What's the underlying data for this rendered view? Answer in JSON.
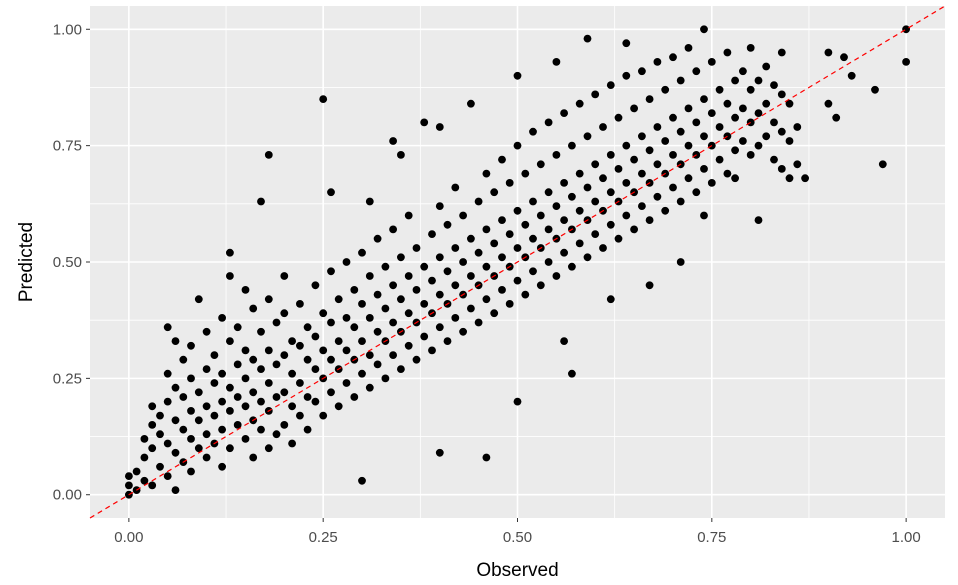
{
  "chart_data": {
    "type": "scatter",
    "title": "",
    "xlabel": "Observed",
    "ylabel": "Predicted",
    "xlim": [
      -0.05,
      1.05
    ],
    "ylim": [
      -0.05,
      1.05
    ],
    "x_ticks": [
      0.0,
      0.25,
      0.5,
      0.75,
      1.0
    ],
    "y_ticks": [
      0.0,
      0.25,
      0.5,
      0.75,
      1.0
    ],
    "x_tick_labels": [
      "0.00",
      "0.25",
      "0.50",
      "0.75",
      "1.00"
    ],
    "y_tick_labels": [
      "0.00",
      "0.25",
      "0.50",
      "0.75",
      "1.00"
    ],
    "grid": true,
    "panel_background": "#ebebeb",
    "grid_color": "#ffffff",
    "point_color": "#000000",
    "reference_line": {
      "slope": 1,
      "intercept": 0,
      "color": "#ff0000",
      "style": "dashed"
    },
    "points_note": "approximately 2500 points clustered along the diagonal; representative sample listed",
    "points": [
      [
        0.0,
        0.0
      ],
      [
        0.0,
        0.02
      ],
      [
        0.0,
        0.04
      ],
      [
        0.01,
        0.01
      ],
      [
        0.01,
        0.05
      ],
      [
        0.02,
        0.03
      ],
      [
        0.02,
        0.08
      ],
      [
        0.02,
        0.12
      ],
      [
        0.03,
        0.02
      ],
      [
        0.03,
        0.1
      ],
      [
        0.03,
        0.15
      ],
      [
        0.03,
        0.19
      ],
      [
        0.04,
        0.06
      ],
      [
        0.04,
        0.13
      ],
      [
        0.04,
        0.17
      ],
      [
        0.05,
        0.04
      ],
      [
        0.05,
        0.11
      ],
      [
        0.05,
        0.2
      ],
      [
        0.05,
        0.26
      ],
      [
        0.05,
        0.36
      ],
      [
        0.06,
        0.01
      ],
      [
        0.06,
        0.09
      ],
      [
        0.06,
        0.16
      ],
      [
        0.06,
        0.23
      ],
      [
        0.06,
        0.33
      ],
      [
        0.07,
        0.07
      ],
      [
        0.07,
        0.14
      ],
      [
        0.07,
        0.21
      ],
      [
        0.07,
        0.29
      ],
      [
        0.08,
        0.05
      ],
      [
        0.08,
        0.12
      ],
      [
        0.08,
        0.18
      ],
      [
        0.08,
        0.25
      ],
      [
        0.08,
        0.32
      ],
      [
        0.09,
        0.1
      ],
      [
        0.09,
        0.16
      ],
      [
        0.09,
        0.22
      ],
      [
        0.09,
        0.42
      ],
      [
        0.1,
        0.08
      ],
      [
        0.1,
        0.13
      ],
      [
        0.1,
        0.19
      ],
      [
        0.1,
        0.27
      ],
      [
        0.1,
        0.35
      ],
      [
        0.11,
        0.11
      ],
      [
        0.11,
        0.17
      ],
      [
        0.11,
        0.24
      ],
      [
        0.11,
        0.3
      ],
      [
        0.12,
        0.06
      ],
      [
        0.12,
        0.14
      ],
      [
        0.12,
        0.2
      ],
      [
        0.12,
        0.26
      ],
      [
        0.12,
        0.38
      ],
      [
        0.13,
        0.52
      ],
      [
        0.13,
        0.47
      ],
      [
        0.13,
        0.1
      ],
      [
        0.13,
        0.18
      ],
      [
        0.13,
        0.23
      ],
      [
        0.13,
        0.33
      ],
      [
        0.14,
        0.15
      ],
      [
        0.14,
        0.21
      ],
      [
        0.14,
        0.28
      ],
      [
        0.14,
        0.36
      ],
      [
        0.15,
        0.12
      ],
      [
        0.15,
        0.19
      ],
      [
        0.15,
        0.25
      ],
      [
        0.15,
        0.31
      ],
      [
        0.15,
        0.44
      ],
      [
        0.16,
        0.08
      ],
      [
        0.16,
        0.16
      ],
      [
        0.16,
        0.22
      ],
      [
        0.16,
        0.29
      ],
      [
        0.16,
        0.4
      ],
      [
        0.17,
        0.14
      ],
      [
        0.17,
        0.2
      ],
      [
        0.17,
        0.27
      ],
      [
        0.17,
        0.35
      ],
      [
        0.17,
        0.63
      ],
      [
        0.18,
        0.1
      ],
      [
        0.18,
        0.18
      ],
      [
        0.18,
        0.24
      ],
      [
        0.18,
        0.31
      ],
      [
        0.18,
        0.42
      ],
      [
        0.18,
        0.73
      ],
      [
        0.19,
        0.13
      ],
      [
        0.19,
        0.21
      ],
      [
        0.19,
        0.28
      ],
      [
        0.19,
        0.37
      ],
      [
        0.2,
        0.15
      ],
      [
        0.2,
        0.22
      ],
      [
        0.2,
        0.3
      ],
      [
        0.2,
        0.39
      ],
      [
        0.2,
        0.47
      ],
      [
        0.21,
        0.11
      ],
      [
        0.21,
        0.19
      ],
      [
        0.21,
        0.26
      ],
      [
        0.21,
        0.33
      ],
      [
        0.22,
        0.17
      ],
      [
        0.22,
        0.24
      ],
      [
        0.22,
        0.32
      ],
      [
        0.22,
        0.41
      ],
      [
        0.23,
        0.14
      ],
      [
        0.23,
        0.21
      ],
      [
        0.23,
        0.29
      ],
      [
        0.23,
        0.36
      ],
      [
        0.24,
        0.2
      ],
      [
        0.24,
        0.27
      ],
      [
        0.24,
        0.34
      ],
      [
        0.24,
        0.45
      ],
      [
        0.25,
        0.85
      ],
      [
        0.25,
        0.17
      ],
      [
        0.25,
        0.25
      ],
      [
        0.25,
        0.31
      ],
      [
        0.25,
        0.39
      ],
      [
        0.26,
        0.22
      ],
      [
        0.26,
        0.29
      ],
      [
        0.26,
        0.37
      ],
      [
        0.26,
        0.48
      ],
      [
        0.26,
        0.65
      ],
      [
        0.27,
        0.19
      ],
      [
        0.27,
        0.27
      ],
      [
        0.27,
        0.33
      ],
      [
        0.27,
        0.42
      ],
      [
        0.28,
        0.24
      ],
      [
        0.28,
        0.31
      ],
      [
        0.28,
        0.38
      ],
      [
        0.28,
        0.5
      ],
      [
        0.29,
        0.21
      ],
      [
        0.29,
        0.29
      ],
      [
        0.29,
        0.36
      ],
      [
        0.29,
        0.44
      ],
      [
        0.3,
        0.03
      ],
      [
        0.3,
        0.26
      ],
      [
        0.3,
        0.33
      ],
      [
        0.3,
        0.41
      ],
      [
        0.3,
        0.52
      ],
      [
        0.31,
        0.23
      ],
      [
        0.31,
        0.3
      ],
      [
        0.31,
        0.38
      ],
      [
        0.31,
        0.47
      ],
      [
        0.31,
        0.63
      ],
      [
        0.32,
        0.28
      ],
      [
        0.32,
        0.35
      ],
      [
        0.32,
        0.43
      ],
      [
        0.32,
        0.55
      ],
      [
        0.33,
        0.25
      ],
      [
        0.33,
        0.33
      ],
      [
        0.33,
        0.4
      ],
      [
        0.33,
        0.49
      ],
      [
        0.34,
        0.3
      ],
      [
        0.34,
        0.37
      ],
      [
        0.34,
        0.45
      ],
      [
        0.34,
        0.57
      ],
      [
        0.34,
        0.76
      ],
      [
        0.35,
        0.27
      ],
      [
        0.35,
        0.35
      ],
      [
        0.35,
        0.42
      ],
      [
        0.35,
        0.51
      ],
      [
        0.35,
        0.73
      ],
      [
        0.36,
        0.32
      ],
      [
        0.36,
        0.39
      ],
      [
        0.36,
        0.47
      ],
      [
        0.36,
        0.6
      ],
      [
        0.37,
        0.29
      ],
      [
        0.37,
        0.37
      ],
      [
        0.37,
        0.44
      ],
      [
        0.37,
        0.53
      ],
      [
        0.38,
        0.34
      ],
      [
        0.38,
        0.41
      ],
      [
        0.38,
        0.49
      ],
      [
        0.38,
        0.8
      ],
      [
        0.39,
        0.31
      ],
      [
        0.39,
        0.39
      ],
      [
        0.39,
        0.46
      ],
      [
        0.39,
        0.56
      ],
      [
        0.4,
        0.09
      ],
      [
        0.4,
        0.36
      ],
      [
        0.4,
        0.43
      ],
      [
        0.4,
        0.51
      ],
      [
        0.4,
        0.62
      ],
      [
        0.4,
        0.79
      ],
      [
        0.41,
        0.33
      ],
      [
        0.41,
        0.41
      ],
      [
        0.41,
        0.48
      ],
      [
        0.41,
        0.58
      ],
      [
        0.42,
        0.38
      ],
      [
        0.42,
        0.45
      ],
      [
        0.42,
        0.53
      ],
      [
        0.42,
        0.66
      ],
      [
        0.43,
        0.35
      ],
      [
        0.43,
        0.43
      ],
      [
        0.43,
        0.5
      ],
      [
        0.43,
        0.6
      ],
      [
        0.44,
        0.4
      ],
      [
        0.44,
        0.47
      ],
      [
        0.44,
        0.55
      ],
      [
        0.44,
        0.84
      ],
      [
        0.45,
        0.37
      ],
      [
        0.45,
        0.45
      ],
      [
        0.45,
        0.52
      ],
      [
        0.45,
        0.63
      ],
      [
        0.46,
        0.08
      ],
      [
        0.46,
        0.42
      ],
      [
        0.46,
        0.49
      ],
      [
        0.46,
        0.57
      ],
      [
        0.46,
        0.69
      ],
      [
        0.47,
        0.39
      ],
      [
        0.47,
        0.47
      ],
      [
        0.47,
        0.54
      ],
      [
        0.47,
        0.65
      ],
      [
        0.48,
        0.44
      ],
      [
        0.48,
        0.51
      ],
      [
        0.48,
        0.59
      ],
      [
        0.48,
        0.72
      ],
      [
        0.49,
        0.41
      ],
      [
        0.49,
        0.49
      ],
      [
        0.49,
        0.56
      ],
      [
        0.49,
        0.67
      ],
      [
        0.5,
        0.2
      ],
      [
        0.5,
        0.46
      ],
      [
        0.5,
        0.53
      ],
      [
        0.5,
        0.61
      ],
      [
        0.5,
        0.75
      ],
      [
        0.5,
        0.9
      ],
      [
        0.51,
        0.43
      ],
      [
        0.51,
        0.51
      ],
      [
        0.51,
        0.58
      ],
      [
        0.51,
        0.69
      ],
      [
        0.52,
        0.48
      ],
      [
        0.52,
        0.55
      ],
      [
        0.52,
        0.63
      ],
      [
        0.52,
        0.78
      ],
      [
        0.53,
        0.45
      ],
      [
        0.53,
        0.53
      ],
      [
        0.53,
        0.6
      ],
      [
        0.53,
        0.71
      ],
      [
        0.54,
        0.5
      ],
      [
        0.54,
        0.57
      ],
      [
        0.54,
        0.65
      ],
      [
        0.54,
        0.8
      ],
      [
        0.55,
        0.47
      ],
      [
        0.55,
        0.55
      ],
      [
        0.55,
        0.62
      ],
      [
        0.55,
        0.73
      ],
      [
        0.55,
        0.93
      ],
      [
        0.56,
        0.33
      ],
      [
        0.56,
        0.52
      ],
      [
        0.56,
        0.59
      ],
      [
        0.56,
        0.67
      ],
      [
        0.56,
        0.82
      ],
      [
        0.57,
        0.26
      ],
      [
        0.57,
        0.49
      ],
      [
        0.57,
        0.57
      ],
      [
        0.57,
        0.64
      ],
      [
        0.57,
        0.75
      ],
      [
        0.58,
        0.54
      ],
      [
        0.58,
        0.61
      ],
      [
        0.58,
        0.69
      ],
      [
        0.58,
        0.84
      ],
      [
        0.59,
        0.51
      ],
      [
        0.59,
        0.59
      ],
      [
        0.59,
        0.66
      ],
      [
        0.59,
        0.77
      ],
      [
        0.59,
        0.98
      ],
      [
        0.6,
        0.56
      ],
      [
        0.6,
        0.63
      ],
      [
        0.6,
        0.71
      ],
      [
        0.6,
        0.86
      ],
      [
        0.61,
        0.53
      ],
      [
        0.61,
        0.61
      ],
      [
        0.61,
        0.68
      ],
      [
        0.61,
        0.79
      ],
      [
        0.62,
        0.42
      ],
      [
        0.62,
        0.58
      ],
      [
        0.62,
        0.65
      ],
      [
        0.62,
        0.73
      ],
      [
        0.62,
        0.88
      ],
      [
        0.63,
        0.55
      ],
      [
        0.63,
        0.63
      ],
      [
        0.63,
        0.7
      ],
      [
        0.63,
        0.81
      ],
      [
        0.64,
        0.6
      ],
      [
        0.64,
        0.67
      ],
      [
        0.64,
        0.75
      ],
      [
        0.64,
        0.9
      ],
      [
        0.64,
        0.97
      ],
      [
        0.65,
        0.57
      ],
      [
        0.65,
        0.65
      ],
      [
        0.65,
        0.72
      ],
      [
        0.65,
        0.83
      ],
      [
        0.66,
        0.62
      ],
      [
        0.66,
        0.69
      ],
      [
        0.66,
        0.77
      ],
      [
        0.66,
        0.91
      ],
      [
        0.67,
        0.45
      ],
      [
        0.67,
        0.59
      ],
      [
        0.67,
        0.67
      ],
      [
        0.67,
        0.74
      ],
      [
        0.67,
        0.85
      ],
      [
        0.68,
        0.64
      ],
      [
        0.68,
        0.71
      ],
      [
        0.68,
        0.79
      ],
      [
        0.68,
        0.93
      ],
      [
        0.69,
        0.61
      ],
      [
        0.69,
        0.69
      ],
      [
        0.69,
        0.76
      ],
      [
        0.69,
        0.87
      ],
      [
        0.7,
        0.66
      ],
      [
        0.7,
        0.73
      ],
      [
        0.7,
        0.81
      ],
      [
        0.7,
        0.94
      ],
      [
        0.71,
        0.5
      ],
      [
        0.71,
        0.63
      ],
      [
        0.71,
        0.71
      ],
      [
        0.71,
        0.78
      ],
      [
        0.71,
        0.89
      ],
      [
        0.72,
        0.68
      ],
      [
        0.72,
        0.75
      ],
      [
        0.72,
        0.83
      ],
      [
        0.72,
        0.96
      ],
      [
        0.73,
        0.65
      ],
      [
        0.73,
        0.73
      ],
      [
        0.73,
        0.8
      ],
      [
        0.73,
        0.91
      ],
      [
        0.74,
        0.6
      ],
      [
        0.74,
        0.7
      ],
      [
        0.74,
        0.77
      ],
      [
        0.74,
        0.85
      ],
      [
        0.74,
        1.0
      ],
      [
        0.75,
        0.67
      ],
      [
        0.75,
        0.75
      ],
      [
        0.75,
        0.82
      ],
      [
        0.75,
        0.93
      ],
      [
        0.76,
        0.72
      ],
      [
        0.76,
        0.79
      ],
      [
        0.76,
        0.87
      ],
      [
        0.77,
        0.69
      ],
      [
        0.77,
        0.77
      ],
      [
        0.77,
        0.84
      ],
      [
        0.77,
        0.95
      ],
      [
        0.78,
        0.74
      ],
      [
        0.78,
        0.81
      ],
      [
        0.78,
        0.89
      ],
      [
        0.78,
        0.68
      ],
      [
        0.79,
        0.76
      ],
      [
        0.79,
        0.83
      ],
      [
        0.79,
        0.91
      ],
      [
        0.8,
        0.73
      ],
      [
        0.8,
        0.8
      ],
      [
        0.8,
        0.87
      ],
      [
        0.8,
        0.96
      ],
      [
        0.81,
        0.59
      ],
      [
        0.81,
        0.75
      ],
      [
        0.81,
        0.82
      ],
      [
        0.81,
        0.89
      ],
      [
        0.82,
        0.77
      ],
      [
        0.82,
        0.84
      ],
      [
        0.82,
        0.92
      ],
      [
        0.83,
        0.72
      ],
      [
        0.83,
        0.8
      ],
      [
        0.83,
        0.88
      ],
      [
        0.84,
        0.7
      ],
      [
        0.84,
        0.78
      ],
      [
        0.84,
        0.86
      ],
      [
        0.84,
        0.95
      ],
      [
        0.85,
        0.68
      ],
      [
        0.85,
        0.76
      ],
      [
        0.85,
        0.84
      ],
      [
        0.86,
        0.71
      ],
      [
        0.86,
        0.79
      ],
      [
        0.87,
        0.68
      ],
      [
        0.9,
        0.84
      ],
      [
        0.9,
        0.95
      ],
      [
        0.91,
        0.81
      ],
      [
        0.92,
        0.94
      ],
      [
        0.93,
        0.9
      ],
      [
        0.96,
        0.87
      ],
      [
        0.97,
        0.71
      ],
      [
        1.0,
        1.0
      ],
      [
        1.0,
        0.93
      ]
    ]
  }
}
